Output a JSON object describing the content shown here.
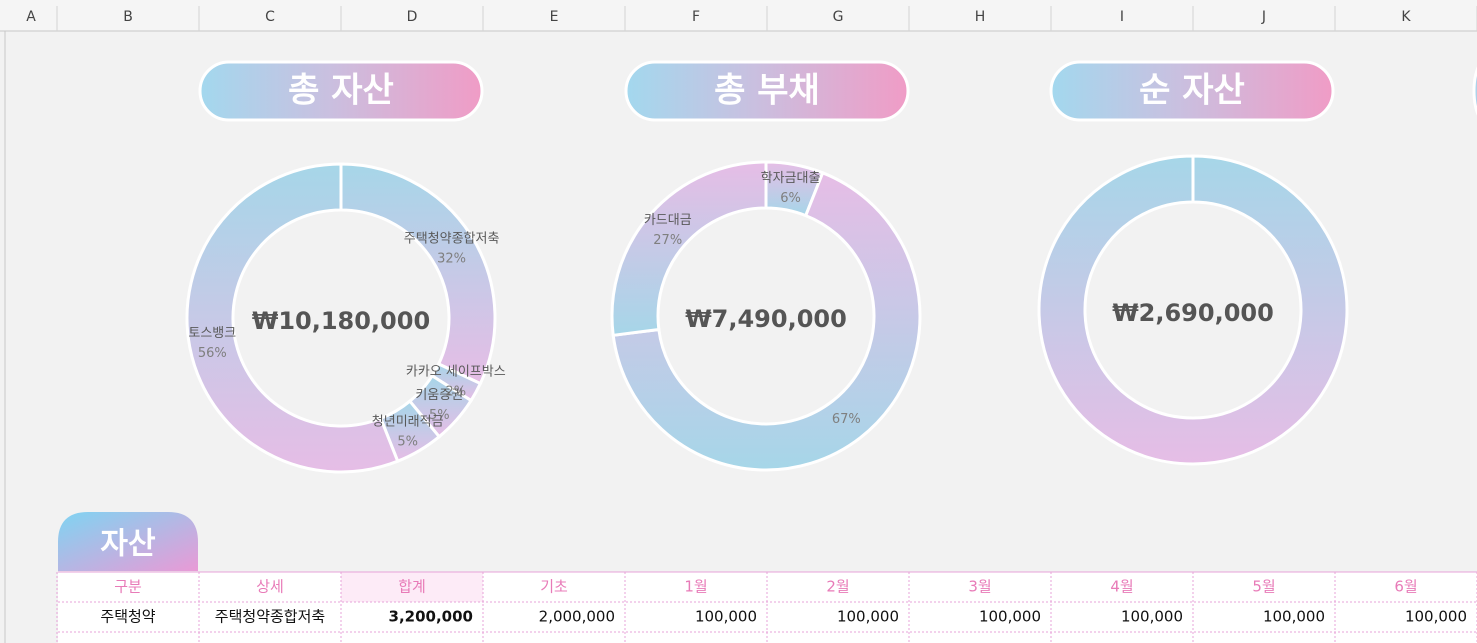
{
  "columns": [
    "A",
    "B",
    "C",
    "D",
    "E",
    "F",
    "G",
    "H",
    "I",
    "J",
    "K"
  ],
  "chart_data": [
    {
      "type": "pie",
      "title": "총 자산",
      "center_label": "₩10,180,000",
      "categories": [
        "주택청약종합저축",
        "카카오 세이프박스",
        "키움증권",
        "청년미래적금",
        "토스뱅크"
      ],
      "values": [
        32,
        2,
        5,
        5,
        56
      ],
      "value_labels": [
        "32%",
        "2%",
        "5%",
        "5%",
        "56%"
      ],
      "colors": [
        "#a6d6e8",
        "#e6bde6"
      ]
    },
    {
      "type": "pie",
      "title": "총 부채",
      "center_label": "₩7,490,000",
      "categories": [
        "학자금대출",
        null,
        "카드대금"
      ],
      "values": [
        6,
        67,
        27
      ],
      "value_labels": [
        "6%",
        "67%",
        "27%"
      ],
      "colors": [
        "#e6bde6",
        "#a6d6e8"
      ]
    },
    {
      "type": "pie",
      "title": "순 자산",
      "center_label": "₩2,690,000",
      "categories": [
        null
      ],
      "values": [
        100
      ],
      "colors": [
        "#a6d6e8",
        "#e6bde6"
      ]
    }
  ],
  "table": {
    "title": "자산",
    "header": [
      "구분",
      "상세",
      "합계",
      "기초",
      "1월",
      "2월",
      "3월",
      "4월",
      "5월",
      "6월"
    ],
    "rows": [
      [
        "주택청약",
        "주택청약종합저축",
        "3,200,000",
        "2,000,000",
        "100,000",
        "100,000",
        "100,000",
        "100,000",
        "100,000",
        "100,000"
      ]
    ]
  }
}
